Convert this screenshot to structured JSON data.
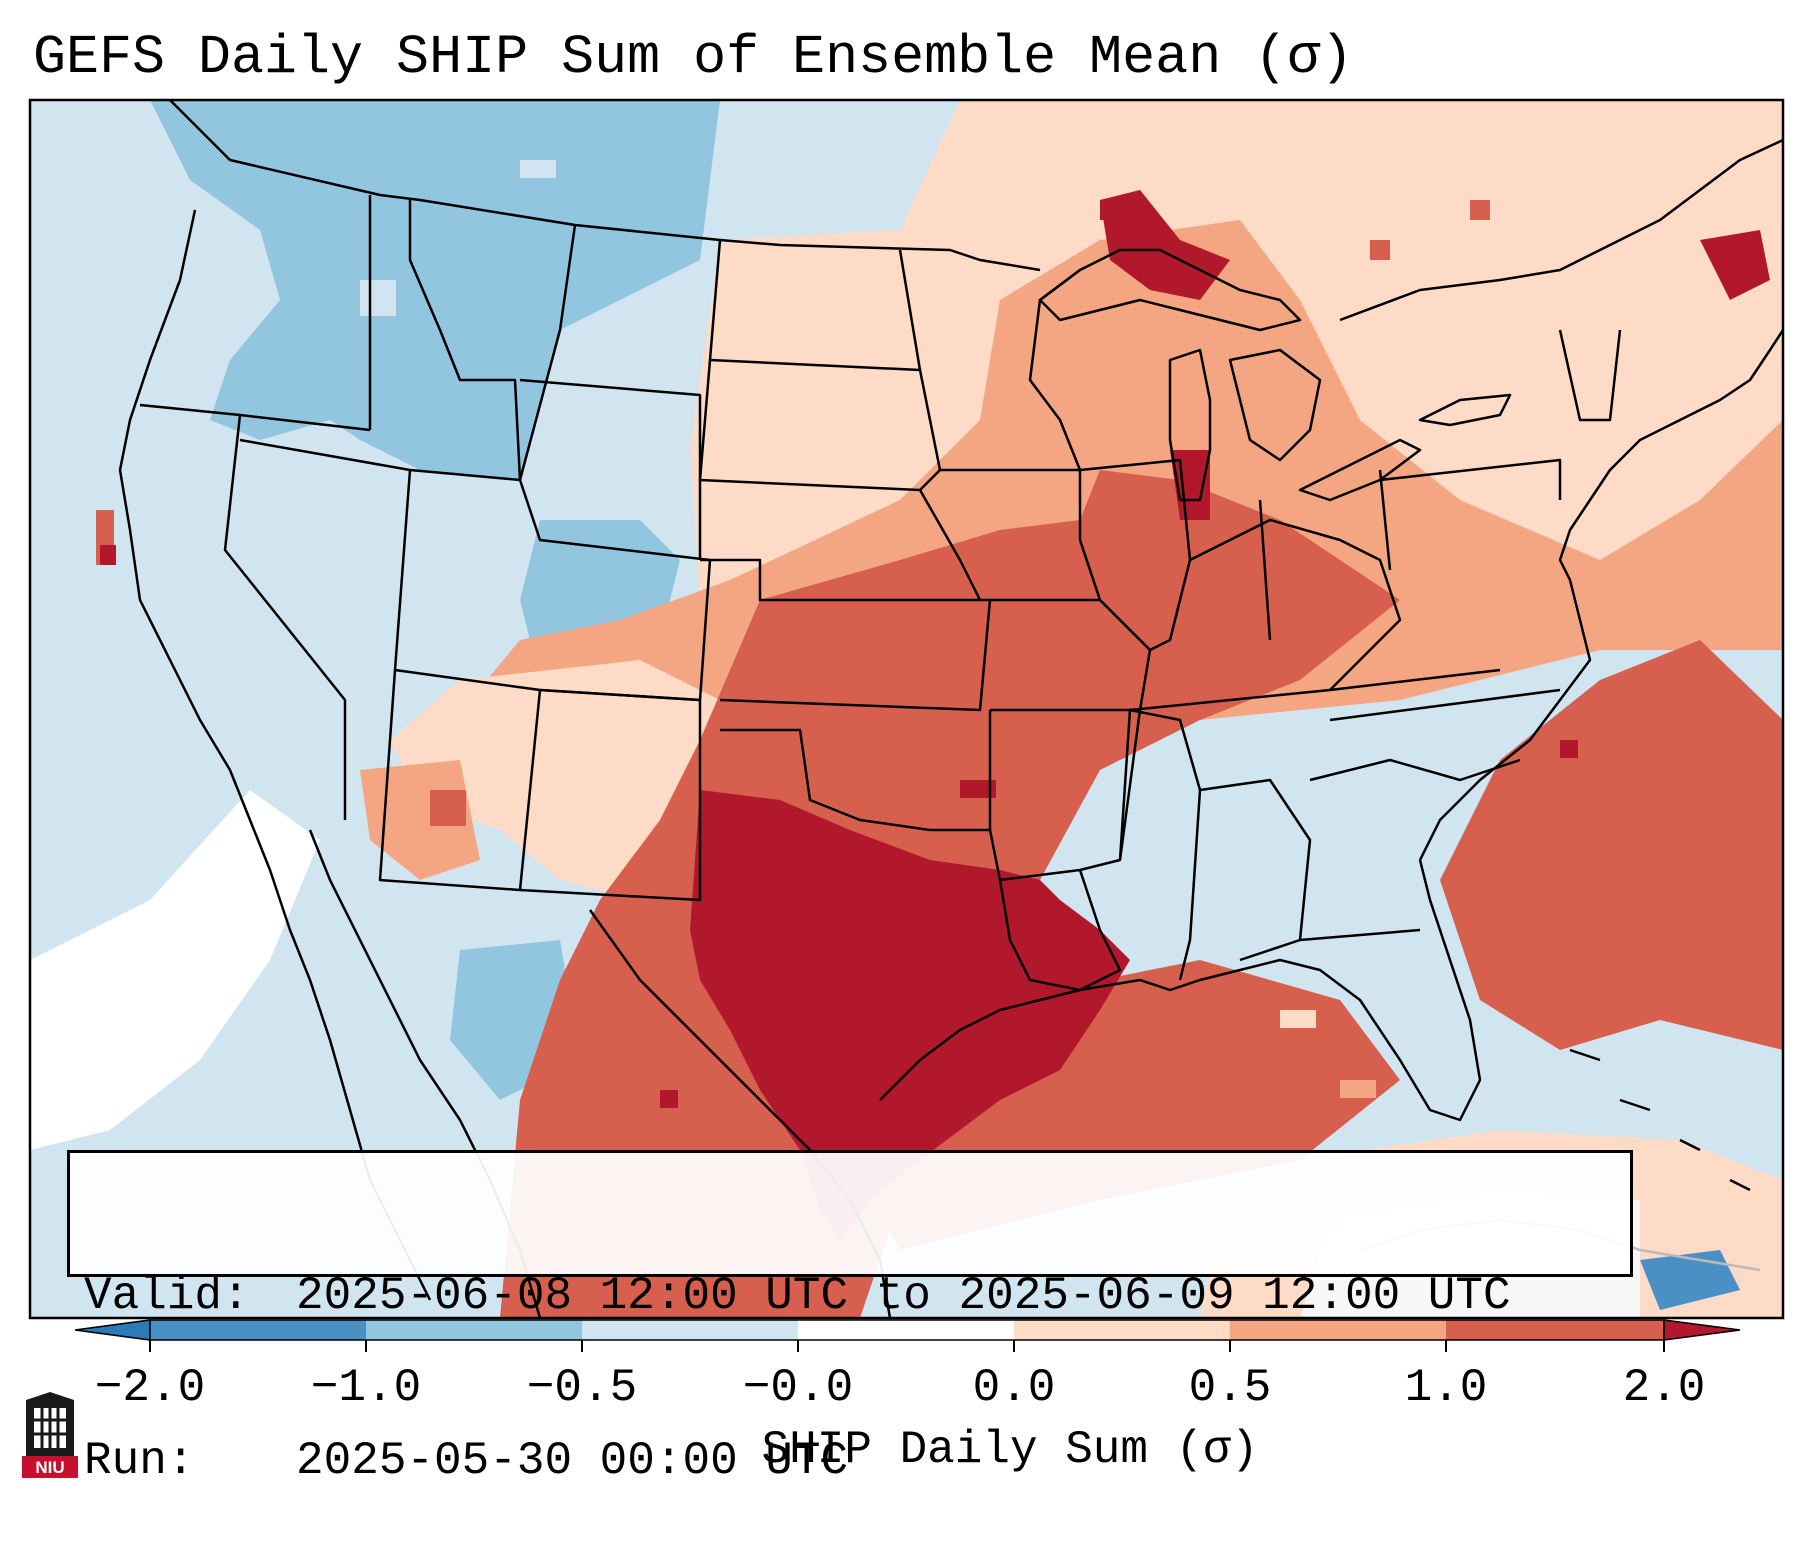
{
  "title": "GEFS Daily SHIP Sum of Ensemble Mean (σ)",
  "info": {
    "valid_label": "Valid:",
    "valid_value": "2025-06-08 12:00 UTC to 2025-06-09 12:00 UTC",
    "run_label": "Run:",
    "run_value": "2025-05-30 00:00 UTC"
  },
  "colorbar": {
    "label": "SHIP Daily Sum (σ)",
    "ticks": [
      "−2.0",
      "−1.0",
      "−0.5",
      "−0.0",
      "0.0",
      "0.5",
      "1.0",
      "2.0"
    ],
    "bins": [
      {
        "range": "< -2.0",
        "color": "#2c7bb6"
      },
      {
        "range": "-2.0 to -1.0",
        "color": "#4a90c4"
      },
      {
        "range": "-1.0 to -0.5",
        "color": "#92c5de"
      },
      {
        "range": "-0.5 to -0.0",
        "color": "#d1e5f0"
      },
      {
        "range": "-0.0 to 0.0",
        "color": "#ffffff"
      },
      {
        "range": "0.0 to 0.5",
        "color": "#fddbc7"
      },
      {
        "range": "0.5 to 1.0",
        "color": "#f4a582"
      },
      {
        "range": "1.0 to 2.0",
        "color": "#d6604d"
      },
      {
        "range": "> 2.0",
        "color": "#b2182b"
      }
    ]
  },
  "logo_text": "NIU"
}
